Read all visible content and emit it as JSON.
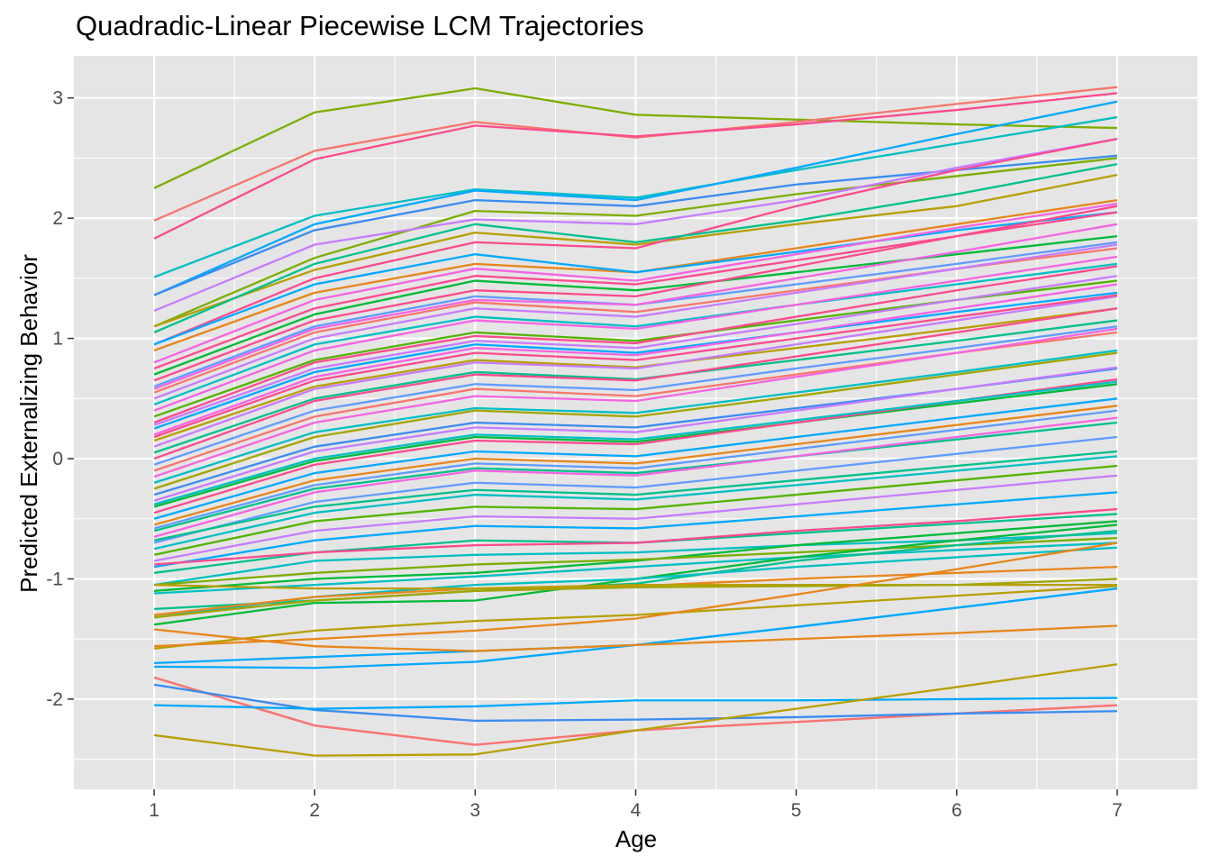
{
  "chart_data": {
    "type": "line",
    "title": "Quadradic-Linear Piecewise LCM Trajectories",
    "xlabel": "Age",
    "ylabel": "Predicted Externalizing Behavior",
    "x": [
      1,
      2,
      3,
      4,
      5,
      6,
      7
    ],
    "xlim": [
      0.5,
      7.5
    ],
    "ylim": [
      -2.75,
      3.35
    ],
    "x_ticks": [
      1,
      2,
      3,
      4,
      5,
      6,
      7
    ],
    "x_tick_labels": [
      "1",
      "2",
      "3",
      "4",
      "5",
      "6",
      "7"
    ],
    "y_ticks": [
      -2,
      -1,
      0,
      1,
      2,
      3
    ],
    "y_tick_labels": [
      "-2",
      "-1",
      "0",
      "1",
      "2",
      "3"
    ],
    "grid": true,
    "legend": "none",
    "panel_background": "#e5e5e5",
    "grid_color": "#ffffff",
    "series": [
      {
        "color": "#7cae00",
        "values": [
          2.25,
          2.88,
          3.08,
          2.86,
          2.82,
          2.78,
          2.75
        ]
      },
      {
        "color": "#f8766d",
        "values": [
          1.98,
          2.56,
          2.8,
          2.67,
          2.8,
          2.95,
          3.09
        ]
      },
      {
        "color": "#fc4b8f",
        "values": [
          1.83,
          2.49,
          2.77,
          2.68,
          2.78,
          2.9,
          3.04
        ]
      },
      {
        "color": "#00bfc4",
        "values": [
          1.51,
          2.02,
          2.24,
          2.17,
          2.4,
          2.62,
          2.84
        ]
      },
      {
        "color": "#00a9ff",
        "values": [
          1.36,
          1.95,
          2.23,
          2.15,
          2.42,
          2.7,
          2.97
        ]
      },
      {
        "color": "#3a8cf0",
        "values": [
          1.36,
          1.9,
          2.15,
          2.1,
          2.28,
          2.4,
          2.52
        ]
      },
      {
        "color": "#7cae00",
        "values": [
          1.1,
          1.67,
          2.06,
          2.02,
          2.2,
          2.35,
          2.5
        ]
      },
      {
        "color": "#c77cff",
        "values": [
          1.23,
          1.78,
          1.99,
          1.95,
          2.15,
          2.42,
          2.66
        ]
      },
      {
        "color": "#b79f00",
        "values": [
          1.1,
          1.57,
          1.88,
          1.78,
          1.95,
          2.1,
          2.36
        ]
      },
      {
        "color": "#fc4b8f",
        "values": [
          0.95,
          1.5,
          1.8,
          1.75,
          2.1,
          2.4,
          2.66
        ]
      },
      {
        "color": "#00c08b",
        "values": [
          1.05,
          1.62,
          1.95,
          1.8,
          1.98,
          2.2,
          2.45
        ]
      },
      {
        "color": "#e7861b",
        "values": [
          0.9,
          1.38,
          1.62,
          1.55,
          1.75,
          1.95,
          2.15
        ]
      },
      {
        "color": "#00a9ff",
        "values": [
          0.95,
          1.45,
          1.7,
          1.55,
          1.72,
          1.9,
          2.05
        ]
      },
      {
        "color": "#f564e3",
        "values": [
          0.8,
          1.32,
          1.58,
          1.48,
          1.7,
          1.92,
          2.12
        ]
      },
      {
        "color": "#00ba38",
        "values": [
          0.7,
          1.2,
          1.48,
          1.4,
          1.55,
          1.7,
          1.85
        ]
      },
      {
        "color": "#fc4b8f",
        "values": [
          0.75,
          1.25,
          1.52,
          1.45,
          1.65,
          1.85,
          2.05
        ]
      },
      {
        "color": "#619cff",
        "values": [
          0.6,
          1.1,
          1.35,
          1.28,
          1.45,
          1.62,
          1.8
        ]
      },
      {
        "color": "#f8766d",
        "values": [
          0.55,
          1.05,
          1.3,
          1.22,
          1.4,
          1.58,
          1.75
        ]
      },
      {
        "color": "#c77cff",
        "values": [
          0.5,
          1.0,
          1.25,
          1.18,
          1.38,
          1.58,
          1.78
        ]
      },
      {
        "color": "#00bfc4",
        "values": [
          0.45,
          0.95,
          1.18,
          1.1,
          1.28,
          1.45,
          1.62
        ]
      },
      {
        "color": "#f564e3",
        "values": [
          0.4,
          0.9,
          1.15,
          1.08,
          1.28,
          1.48,
          1.68
        ]
      },
      {
        "color": "#53b400",
        "values": [
          0.35,
          0.82,
          1.05,
          0.98,
          1.15,
          1.32,
          1.48
        ]
      },
      {
        "color": "#fc4b8f",
        "values": [
          0.3,
          0.8,
          1.02,
          0.96,
          1.18,
          1.4,
          1.6
        ]
      },
      {
        "color": "#00a9ff",
        "values": [
          0.25,
          0.72,
          0.95,
          0.88,
          1.05,
          1.22,
          1.38
        ]
      },
      {
        "color": "#f564e3",
        "values": [
          0.2,
          0.68,
          0.92,
          0.86,
          1.05,
          1.25,
          1.45
        ]
      },
      {
        "color": "#b79f00",
        "values": [
          0.15,
          0.6,
          0.82,
          0.76,
          0.92,
          1.08,
          1.25
        ]
      },
      {
        "color": "#c77cff",
        "values": [
          0.1,
          0.58,
          0.8,
          0.75,
          0.95,
          1.15,
          1.35
        ]
      },
      {
        "color": "#00c08b",
        "values": [
          0.05,
          0.5,
          0.72,
          0.66,
          0.82,
          0.98,
          1.15
        ]
      },
      {
        "color": "#fc4b8f",
        "values": [
          0.0,
          0.48,
          0.7,
          0.65,
          0.85,
          1.05,
          1.25
        ]
      },
      {
        "color": "#619cff",
        "values": [
          -0.05,
          0.4,
          0.62,
          0.57,
          0.75,
          0.92,
          1.1
        ]
      },
      {
        "color": "#f8766d",
        "values": [
          -0.1,
          0.35,
          0.58,
          0.52,
          0.7,
          0.88,
          1.05
        ]
      },
      {
        "color": "#f564e3",
        "values": [
          -0.15,
          0.3,
          0.52,
          0.48,
          0.68,
          0.88,
          1.08
        ]
      },
      {
        "color": "#00bfc4",
        "values": [
          -0.2,
          0.22,
          0.42,
          0.38,
          0.55,
          0.72,
          0.9
        ]
      },
      {
        "color": "#a3a500",
        "values": [
          -0.25,
          0.18,
          0.4,
          0.35,
          0.52,
          0.7,
          0.88
        ]
      },
      {
        "color": "#3a8cf0",
        "values": [
          -0.3,
          0.1,
          0.3,
          0.26,
          0.42,
          0.58,
          0.75
        ]
      },
      {
        "color": "#c77cff",
        "values": [
          -0.35,
          0.06,
          0.26,
          0.22,
          0.4,
          0.58,
          0.76
        ]
      },
      {
        "color": "#00ba38",
        "values": [
          -0.4,
          -0.02,
          0.18,
          0.14,
          0.3,
          0.46,
          0.62
        ]
      },
      {
        "color": "#fc4b8f",
        "values": [
          -0.45,
          -0.05,
          0.15,
          0.12,
          0.3,
          0.48,
          0.66
        ]
      },
      {
        "color": "#00a9ff",
        "values": [
          -0.5,
          -0.12,
          0.06,
          0.02,
          0.18,
          0.34,
          0.5
        ]
      },
      {
        "color": "#e7861b",
        "values": [
          -0.55,
          -0.18,
          0.0,
          -0.04,
          0.12,
          0.28,
          0.44
        ]
      },
      {
        "color": "#00c08b",
        "values": [
          -0.6,
          -0.25,
          -0.08,
          -0.12,
          0.02,
          0.16,
          0.3
        ]
      },
      {
        "color": "#f564e3",
        "values": [
          -0.65,
          -0.28,
          -0.1,
          -0.14,
          0.02,
          0.18,
          0.34
        ]
      },
      {
        "color": "#619cff",
        "values": [
          -0.7,
          -0.36,
          -0.2,
          -0.24,
          -0.1,
          0.04,
          0.18
        ]
      },
      {
        "color": "#00bfc4",
        "values": [
          -0.75,
          -0.45,
          -0.3,
          -0.34,
          -0.22,
          -0.1,
          0.02
        ]
      },
      {
        "color": "#53b400",
        "values": [
          -0.8,
          -0.52,
          -0.4,
          -0.42,
          -0.3,
          -0.18,
          -0.06
        ]
      },
      {
        "color": "#c77cff",
        "values": [
          -0.85,
          -0.6,
          -0.48,
          -0.5,
          -0.38,
          -0.26,
          -0.14
        ]
      },
      {
        "color": "#00a9ff",
        "values": [
          -0.9,
          -0.68,
          -0.56,
          -0.58,
          -0.48,
          -0.38,
          -0.28
        ]
      },
      {
        "color": "#00c08b",
        "values": [
          -0.95,
          -0.78,
          -0.68,
          -0.7,
          -0.62,
          -0.54,
          -0.46
        ]
      },
      {
        "color": "#fc4b8f",
        "values": [
          -0.88,
          -0.78,
          -0.72,
          -0.7,
          -0.6,
          -0.52,
          -0.42
        ]
      },
      {
        "color": "#00bfc4",
        "values": [
          -1.05,
          -0.85,
          -0.8,
          -0.78,
          -0.72,
          -0.68,
          -0.62
        ]
      },
      {
        "color": "#00ba38",
        "values": [
          -1.1,
          -1.0,
          -0.95,
          -0.85,
          -0.72,
          -0.62,
          -0.52
        ]
      },
      {
        "color": "#00bfc4",
        "values": [
          -1.12,
          -1.05,
          -0.98,
          -0.9,
          -0.82,
          -0.76,
          -0.7
        ]
      },
      {
        "color": "#7cae00",
        "values": [
          -1.05,
          -0.95,
          -0.88,
          -0.84,
          -0.78,
          -0.72,
          -0.66
        ]
      },
      {
        "color": "#00c08b",
        "values": [
          -1.25,
          -1.18,
          -1.1,
          -1.04,
          -0.85,
          -0.72,
          -0.6
        ]
      },
      {
        "color": "#00ba38",
        "values": [
          -1.38,
          -1.2,
          -1.18,
          -1.0,
          -0.82,
          -0.68,
          -0.55
        ]
      },
      {
        "color": "#00bfc4",
        "values": [
          -1.32,
          -1.15,
          -1.05,
          -1.0,
          -0.9,
          -0.82,
          -0.74
        ]
      },
      {
        "color": "#e7861b",
        "values": [
          -1.3,
          -1.15,
          -1.08,
          -1.06,
          -1.0,
          -0.95,
          -0.9
        ]
      },
      {
        "color": "#b79f00",
        "values": [
          -1.05,
          -1.08,
          -1.08,
          -1.05,
          -1.05,
          -1.05,
          -1.05
        ]
      },
      {
        "color": "#a3a500",
        "values": [
          -1.32,
          -1.18,
          -1.1,
          -1.07,
          -1.06,
          -1.05,
          -1.0
        ]
      },
      {
        "color": "#b79f00",
        "values": [
          -1.58,
          -1.43,
          -1.35,
          -1.3,
          -1.22,
          -1.14,
          -1.06
        ]
      },
      {
        "color": "#e7861b",
        "values": [
          -1.56,
          -1.5,
          -1.43,
          -1.33,
          -1.13,
          -0.92,
          -0.7
        ]
      },
      {
        "color": "#00a9ff",
        "values": [
          -1.7,
          -1.65,
          -1.6,
          -1.55,
          -1.4,
          -1.24,
          -1.08
        ]
      },
      {
        "color": "#00a9ff",
        "values": [
          -1.73,
          -1.74,
          -1.69,
          -1.55,
          -1.4,
          -1.24,
          -1.08
        ]
      },
      {
        "color": "#e7861b",
        "values": [
          -1.42,
          -1.56,
          -1.6,
          -1.55,
          -1.5,
          -1.45,
          -1.39
        ]
      },
      {
        "color": "#fb61d7",
        "values": [
          -1.82,
          -2.22,
          -2.38,
          -2.26,
          -2.19,
          -2.12,
          -2.05
        ]
      },
      {
        "color": "#f8766d",
        "values": [
          -1.82,
          -2.22,
          -2.38,
          -2.26,
          -2.19,
          -2.12,
          -2.05
        ]
      },
      {
        "color": "#3a8cf0",
        "values": [
          -1.88,
          -2.09,
          -2.18,
          -2.17,
          -2.15,
          -2.12,
          -2.1
        ]
      },
      {
        "color": "#00a9ff",
        "values": [
          -2.05,
          -2.08,
          -2.06,
          -2.01,
          -2.01,
          -2.0,
          -1.99
        ]
      },
      {
        "color": "#b79f00",
        "values": [
          -2.3,
          -2.47,
          -2.46,
          -2.26,
          -2.08,
          -1.9,
          -1.71
        ]
      },
      {
        "color": "#fc4b8f",
        "values": [
          0.65,
          1.15,
          1.4,
          1.35,
          1.6,
          1.85,
          2.1
        ]
      },
      {
        "color": "#f564e3",
        "values": [
          0.58,
          1.08,
          1.32,
          1.28,
          1.5,
          1.72,
          1.95
        ]
      },
      {
        "color": "#c77cff",
        "values": [
          0.28,
          0.75,
          0.98,
          0.92,
          1.12,
          1.32,
          1.52
        ]
      },
      {
        "color": "#fc4b8f",
        "values": [
          0.18,
          0.65,
          0.88,
          0.82,
          1.0,
          1.18,
          1.36
        ]
      },
      {
        "color": "#00bfc4",
        "values": [
          -0.38,
          0.0,
          0.2,
          0.16,
          0.32,
          0.48,
          0.64
        ]
      },
      {
        "color": "#619cff",
        "values": [
          -0.58,
          -0.22,
          -0.04,
          -0.08,
          0.08,
          0.24,
          0.4
        ]
      },
      {
        "color": "#00c08b",
        "values": [
          -0.68,
          -0.4,
          -0.26,
          -0.3,
          -0.18,
          -0.06,
          0.06
        ]
      }
    ]
  }
}
